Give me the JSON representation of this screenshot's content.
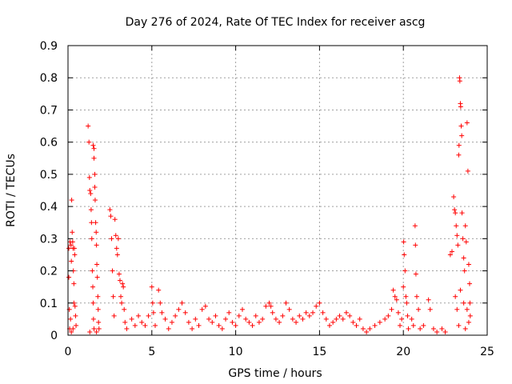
{
  "chart_data": {
    "type": "scatter",
    "title": "Day 276 of 2024, Rate Of TEC Index for receiver ascg",
    "xlabel": "GPS time / hours",
    "ylabel": "ROTI / TECUs",
    "xlim": [
      0,
      25
    ],
    "ylim": [
      0,
      0.9
    ],
    "xticks": [
      0,
      5,
      10,
      15,
      20,
      25
    ],
    "xtick_labels": [
      "0",
      "5",
      "10",
      "15",
      "20",
      "25"
    ],
    "yticks": [
      0,
      0.1,
      0.2,
      0.3,
      0.4,
      0.5,
      0.6,
      0.7,
      0.8,
      0.9
    ],
    "ytick_labels": [
      "0",
      "0.1",
      "0.2",
      "0.3",
      "0.4",
      "0.5",
      "0.6",
      "0.7",
      "0.8",
      "0.9"
    ],
    "grid": true,
    "marker": "+",
    "color": "#ff0000",
    "series": [
      {
        "name": "ROTI",
        "points": [
          [
            0.05,
            0.27
          ],
          [
            0.05,
            0.18
          ],
          [
            0.08,
            0.08
          ],
          [
            0.1,
            0.02
          ],
          [
            0.12,
            0.29
          ],
          [
            0.15,
            0.05
          ],
          [
            0.18,
            0.28
          ],
          [
            0.2,
            0.23
          ],
          [
            0.22,
            0.42
          ],
          [
            0.25,
            0.32
          ],
          [
            0.28,
            0.29
          ],
          [
            0.3,
            0.27
          ],
          [
            0.32,
            0.2
          ],
          [
            0.35,
            0.16
          ],
          [
            0.35,
            0.1
          ],
          [
            0.38,
            0.27
          ],
          [
            0.4,
            0.25
          ],
          [
            0.42,
            0.09
          ],
          [
            0.45,
            0.06
          ],
          [
            0.48,
            0.03
          ],
          [
            0.2,
            0.01
          ],
          [
            0.3,
            0.02
          ],
          [
            1.2,
            0.65
          ],
          [
            1.25,
            0.6
          ],
          [
            1.28,
            0.49
          ],
          [
            1.3,
            0.45
          ],
          [
            1.35,
            0.44
          ],
          [
            1.38,
            0.39
          ],
          [
            1.4,
            0.35
          ],
          [
            1.42,
            0.3
          ],
          [
            1.45,
            0.2
          ],
          [
            1.48,
            0.15
          ],
          [
            1.5,
            0.1
          ],
          [
            1.52,
            0.05
          ],
          [
            1.55,
            0.02
          ],
          [
            1.5,
            0.59
          ],
          [
            1.55,
            0.58
          ],
          [
            1.55,
            0.55
          ],
          [
            1.6,
            0.5
          ],
          [
            1.6,
            0.46
          ],
          [
            1.62,
            0.42
          ],
          [
            1.65,
            0.35
          ],
          [
            1.68,
            0.32
          ],
          [
            1.7,
            0.28
          ],
          [
            1.72,
            0.22
          ],
          [
            1.75,
            0.18
          ],
          [
            1.78,
            0.12
          ],
          [
            1.8,
            0.08
          ],
          [
            1.82,
            0.04
          ],
          [
            1.85,
            0.02
          ],
          [
            1.3,
            0.01
          ],
          [
            1.7,
            0.01
          ],
          [
            2.5,
            0.39
          ],
          [
            2.55,
            0.37
          ],
          [
            2.6,
            0.3
          ],
          [
            2.65,
            0.2
          ],
          [
            2.7,
            0.12
          ],
          [
            2.75,
            0.06
          ],
          [
            2.8,
            0.36
          ],
          [
            2.85,
            0.31
          ],
          [
            2.9,
            0.27
          ],
          [
            2.95,
            0.25
          ],
          [
            3.0,
            0.3
          ],
          [
            3.05,
            0.19
          ],
          [
            3.1,
            0.17
          ],
          [
            3.15,
            0.12
          ],
          [
            3.2,
            0.1
          ],
          [
            3.25,
            0.16
          ],
          [
            3.3,
            0.15
          ],
          [
            3.35,
            0.08
          ],
          [
            3.4,
            0.04
          ],
          [
            3.5,
            0.02
          ],
          [
            3.8,
            0.05
          ],
          [
            4.0,
            0.03
          ],
          [
            4.2,
            0.06
          ],
          [
            4.4,
            0.04
          ],
          [
            4.6,
            0.03
          ],
          [
            4.8,
            0.06
          ],
          [
            5.0,
            0.15
          ],
          [
            5.05,
            0.1
          ],
          [
            5.1,
            0.07
          ],
          [
            5.2,
            0.03
          ],
          [
            5.4,
            0.14
          ],
          [
            5.5,
            0.1
          ],
          [
            5.6,
            0.07
          ],
          [
            5.8,
            0.05
          ],
          [
            6.0,
            0.02
          ],
          [
            6.2,
            0.04
          ],
          [
            6.4,
            0.06
          ],
          [
            6.6,
            0.08
          ],
          [
            6.8,
            0.1
          ],
          [
            7.0,
            0.07
          ],
          [
            7.2,
            0.04
          ],
          [
            7.4,
            0.02
          ],
          [
            7.6,
            0.05
          ],
          [
            7.8,
            0.03
          ],
          [
            8.0,
            0.08
          ],
          [
            8.2,
            0.09
          ],
          [
            8.4,
            0.05
          ],
          [
            8.6,
            0.04
          ],
          [
            8.8,
            0.06
          ],
          [
            9.0,
            0.03
          ],
          [
            9.2,
            0.02
          ],
          [
            9.4,
            0.05
          ],
          [
            9.6,
            0.07
          ],
          [
            9.8,
            0.04
          ],
          [
            10.0,
            0.03
          ],
          [
            10.2,
            0.06
          ],
          [
            10.4,
            0.08
          ],
          [
            10.6,
            0.05
          ],
          [
            10.8,
            0.04
          ],
          [
            11.0,
            0.03
          ],
          [
            11.2,
            0.06
          ],
          [
            11.4,
            0.04
          ],
          [
            11.6,
            0.05
          ],
          [
            11.8,
            0.09
          ],
          [
            12.0,
            0.1
          ],
          [
            12.1,
            0.09
          ],
          [
            12.2,
            0.07
          ],
          [
            12.4,
            0.05
          ],
          [
            12.6,
            0.04
          ],
          [
            12.8,
            0.06
          ],
          [
            13.0,
            0.1
          ],
          [
            13.2,
            0.08
          ],
          [
            13.4,
            0.05
          ],
          [
            13.6,
            0.04
          ],
          [
            13.8,
            0.06
          ],
          [
            14.0,
            0.05
          ],
          [
            14.2,
            0.07
          ],
          [
            14.4,
            0.06
          ],
          [
            14.6,
            0.07
          ],
          [
            14.8,
            0.09
          ],
          [
            15.0,
            0.1
          ],
          [
            15.2,
            0.07
          ],
          [
            15.4,
            0.05
          ],
          [
            15.6,
            0.03
          ],
          [
            15.8,
            0.04
          ],
          [
            16.0,
            0.05
          ],
          [
            16.2,
            0.06
          ],
          [
            16.4,
            0.05
          ],
          [
            16.6,
            0.07
          ],
          [
            16.8,
            0.06
          ],
          [
            17.0,
            0.04
          ],
          [
            17.2,
            0.03
          ],
          [
            17.4,
            0.05
          ],
          [
            17.6,
            0.02
          ],
          [
            17.8,
            0.01
          ],
          [
            18.0,
            0.02
          ],
          [
            18.3,
            0.03
          ],
          [
            18.6,
            0.04
          ],
          [
            18.9,
            0.05
          ],
          [
            19.1,
            0.06
          ],
          [
            19.3,
            0.08
          ],
          [
            19.4,
            0.14
          ],
          [
            19.5,
            0.12
          ],
          [
            19.6,
            0.11
          ],
          [
            19.7,
            0.07
          ],
          [
            19.8,
            0.03
          ],
          [
            19.9,
            0.05
          ],
          [
            20.0,
            0.15
          ],
          [
            20.02,
            0.29
          ],
          [
            20.05,
            0.25
          ],
          [
            20.1,
            0.2
          ],
          [
            20.15,
            0.12
          ],
          [
            20.2,
            0.1
          ],
          [
            20.25,
            0.06
          ],
          [
            20.3,
            0.02
          ],
          [
            20.5,
            0.05
          ],
          [
            20.6,
            0.03
          ],
          [
            20.7,
            0.34
          ],
          [
            20.72,
            0.28
          ],
          [
            20.75,
            0.19
          ],
          [
            20.8,
            0.12
          ],
          [
            20.9,
            0.08
          ],
          [
            21.0,
            0.02
          ],
          [
            21.2,
            0.03
          ],
          [
            21.5,
            0.11
          ],
          [
            21.6,
            0.08
          ],
          [
            21.8,
            0.02
          ],
          [
            22.0,
            0.01
          ],
          [
            22.3,
            0.02
          ],
          [
            22.5,
            0.01
          ],
          [
            22.8,
            0.25
          ],
          [
            22.9,
            0.26
          ],
          [
            23.0,
            0.43
          ],
          [
            23.05,
            0.39
          ],
          [
            23.1,
            0.38
          ],
          [
            23.15,
            0.34
          ],
          [
            23.2,
            0.31
          ],
          [
            23.25,
            0.28
          ],
          [
            23.3,
            0.56
          ],
          [
            23.32,
            0.59
          ],
          [
            23.35,
            0.8
          ],
          [
            23.37,
            0.79
          ],
          [
            23.4,
            0.72
          ],
          [
            23.42,
            0.71
          ],
          [
            23.45,
            0.65
          ],
          [
            23.48,
            0.62
          ],
          [
            23.5,
            0.38
          ],
          [
            23.55,
            0.3
          ],
          [
            23.6,
            0.24
          ],
          [
            23.65,
            0.2
          ],
          [
            23.7,
            0.34
          ],
          [
            23.75,
            0.29
          ],
          [
            23.8,
            0.66
          ],
          [
            23.85,
            0.51
          ],
          [
            23.9,
            0.22
          ],
          [
            23.95,
            0.16
          ],
          [
            23.97,
            0.1
          ],
          [
            23.99,
            0.06
          ],
          [
            23.1,
            0.12
          ],
          [
            23.2,
            0.08
          ],
          [
            23.4,
            0.14
          ],
          [
            23.6,
            0.1
          ],
          [
            23.8,
            0.08
          ],
          [
            23.9,
            0.04
          ],
          [
            23.3,
            0.03
          ],
          [
            23.7,
            0.02
          ]
        ]
      }
    ]
  }
}
